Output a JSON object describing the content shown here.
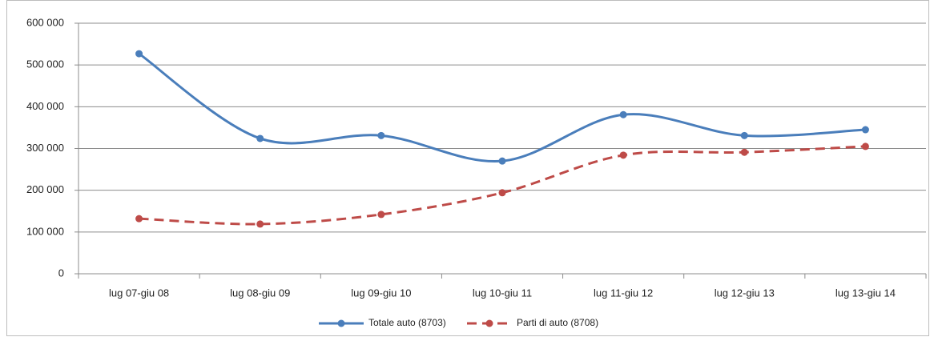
{
  "chart_data": {
    "type": "line",
    "categories": [
      "lug 07-giu 08",
      "lug 08-giu 09",
      "lug 09-giu 10",
      "lug 10-giu 11",
      "lug 11-giu 12",
      "lug 12-giu 13",
      "lug 13-giu 14"
    ],
    "series": [
      {
        "name": "Totale auto (8703)",
        "color": "#4a7ebb",
        "dashed": false,
        "values": [
          527000,
          324000,
          331000,
          270000,
          381000,
          331000,
          345000
        ]
      },
      {
        "name": "Parti di auto (8708)",
        "color": "#be4b48",
        "dashed": true,
        "values": [
          132000,
          119000,
          142000,
          194000,
          284000,
          291000,
          305000
        ]
      }
    ],
    "ylim": [
      0,
      600000
    ],
    "yticks": [
      0,
      {
        "value": 100000,
        "label": "100 000"
      },
      {
        "value": 200000,
        "label": "200 000"
      },
      {
        "value": 300000,
        "label": "300 000"
      },
      {
        "value": 400000,
        "label": "400 000"
      },
      {
        "value": 500000,
        "label": "500 000"
      },
      {
        "value": 600000,
        "label": "600 000"
      }
    ],
    "grid": true,
    "smooth": true,
    "legend": "bottom"
  }
}
